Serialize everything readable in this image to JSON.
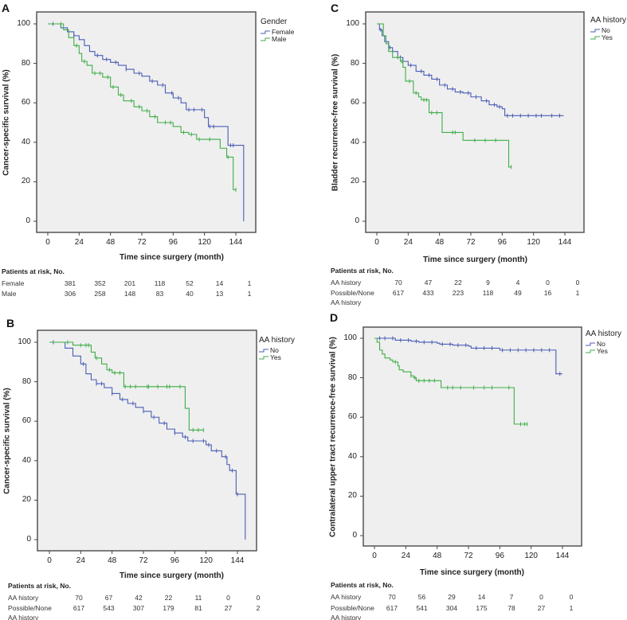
{
  "colors": {
    "blue": "#4a5db5",
    "green": "#3fae49",
    "plot_bg": "#efefef",
    "frame": "#555555"
  },
  "chart_data": [
    {
      "panel": "A",
      "type": "line",
      "ylabel": "Cancer-specific survival (%)",
      "xlabel": "Time since surgery (month)",
      "xticks": [
        0,
        24,
        48,
        72,
        96,
        120,
        144
      ],
      "yticks": [
        0,
        20,
        40,
        60,
        80,
        100
      ],
      "xlim": [
        -8,
        160
      ],
      "ylim": [
        -5,
        105
      ],
      "legend_title": "Gender",
      "legend_position": "right",
      "series": [
        {
          "name": "Female",
          "color": "blue",
          "points": [
            [
              0,
              100
            ],
            [
              5,
              100
            ],
            [
              10,
              98
            ],
            [
              15,
              96
            ],
            [
              20,
              94
            ],
            [
              24,
              92
            ],
            [
              28,
              89
            ],
            [
              32,
              86
            ],
            [
              36,
              84
            ],
            [
              42,
              82
            ],
            [
              48,
              80.5
            ],
            [
              54,
              79
            ],
            [
              60,
              77
            ],
            [
              66,
              75
            ],
            [
              72,
              73.5
            ],
            [
              78,
              71
            ],
            [
              84,
              69
            ],
            [
              90,
              65
            ],
            [
              96,
              62.5
            ],
            [
              102,
              60
            ],
            [
              106,
              56.5
            ],
            [
              120,
              52.5
            ],
            [
              123,
              48
            ],
            [
              137,
              48
            ],
            [
              138,
              38.5
            ],
            [
              150,
              38.5
            ],
            [
              150,
              0
            ]
          ],
          "censored": [
            4,
            20,
            38,
            45,
            52,
            60,
            70,
            80,
            88,
            95,
            100,
            108,
            112,
            118,
            124,
            127,
            140,
            142
          ]
        },
        {
          "name": "Male",
          "color": "green",
          "points": [
            [
              0,
              100
            ],
            [
              8,
              100
            ],
            [
              12,
              97
            ],
            [
              16,
              93
            ],
            [
              20,
              89
            ],
            [
              24,
              85
            ],
            [
              26,
              81
            ],
            [
              30,
              79
            ],
            [
              34,
              75
            ],
            [
              42,
              73
            ],
            [
              48,
              68
            ],
            [
              54,
              64
            ],
            [
              58,
              61
            ],
            [
              66,
              58
            ],
            [
              72,
              56
            ],
            [
              78,
              53
            ],
            [
              84,
              50
            ],
            [
              96,
              48
            ],
            [
              102,
              45
            ],
            [
              108,
              44
            ],
            [
              114,
              41.5
            ],
            [
              130,
              41.5
            ],
            [
              132,
              37
            ],
            [
              137,
              32.5
            ],
            [
              142,
              32.5
            ],
            [
              142,
              16
            ],
            [
              144,
              16
            ]
          ],
          "censored": [
            10,
            22,
            28,
            36,
            40,
            46,
            50,
            56,
            64,
            70,
            76,
            82,
            90,
            94,
            104,
            110,
            116,
            124,
            138,
            144
          ]
        }
      ],
      "risk_table": {
        "title": "Patients at risk, No.",
        "rows": [
          {
            "label": "Female",
            "values": [
              381,
              352,
              201,
              118,
              52,
              14,
              1
            ]
          },
          {
            "label": "Male",
            "values": [
              306,
              258,
              148,
              83,
              40,
              13,
              1
            ]
          }
        ]
      }
    },
    {
      "panel": "B",
      "type": "line",
      "ylabel": "Cancer-specific survival (%)",
      "xlabel": "Time since surgery (month)",
      "xticks": [
        0,
        24,
        48,
        72,
        96,
        120,
        144
      ],
      "yticks": [
        0,
        20,
        40,
        60,
        80,
        100
      ],
      "xlim": [
        -8,
        160
      ],
      "ylim": [
        -5,
        105
      ],
      "legend_title": "AA history",
      "legend_position": "right",
      "series": [
        {
          "name": "No",
          "color": "blue",
          "points": [
            [
              0,
              100
            ],
            [
              6,
              100
            ],
            [
              12,
              97
            ],
            [
              18,
              93
            ],
            [
              24,
              89
            ],
            [
              28,
              84
            ],
            [
              32,
              81
            ],
            [
              36,
              79
            ],
            [
              42,
              77
            ],
            [
              48,
              74
            ],
            [
              54,
              71
            ],
            [
              60,
              69
            ],
            [
              66,
              67
            ],
            [
              72,
              65
            ],
            [
              78,
              62
            ],
            [
              84,
              59
            ],
            [
              90,
              56
            ],
            [
              96,
              54
            ],
            [
              102,
              52
            ],
            [
              106,
              50
            ],
            [
              114,
              50
            ],
            [
              120,
              48
            ],
            [
              124,
              45
            ],
            [
              130,
              45
            ],
            [
              132,
              42
            ],
            [
              136,
              38
            ],
            [
              138,
              35
            ],
            [
              142,
              35
            ],
            [
              143,
              23
            ],
            [
              150,
              23
            ],
            [
              150,
              0
            ]
          ],
          "censored": [
            3,
            26,
            36,
            40,
            48,
            56,
            64,
            72,
            80,
            88,
            96,
            104,
            110,
            118,
            122,
            128,
            135,
            140,
            144
          ]
        },
        {
          "name": "Yes",
          "color": "green",
          "points": [
            [
              0,
              100
            ],
            [
              14,
              100
            ],
            [
              18,
              98.5
            ],
            [
              28,
              98.5
            ],
            [
              32,
              95
            ],
            [
              35,
              92
            ],
            [
              40,
              89
            ],
            [
              44,
              86
            ],
            [
              48,
              84.5
            ],
            [
              56,
              84.5
            ],
            [
              57,
              77.5
            ],
            [
              103,
              77.5
            ],
            [
              104,
              66.5
            ],
            [
              106,
              66.5
            ],
            [
              107,
              55.5
            ],
            [
              118,
              55.5
            ]
          ],
          "censored": [
            14,
            24,
            28,
            30,
            36,
            46,
            50,
            54,
            58,
            62,
            66,
            75,
            76,
            83,
            90,
            92,
            100,
            110,
            114,
            118
          ]
        }
      ],
      "risk_table": {
        "title": "Patients at risk, No.",
        "rows": [
          {
            "label": "AA history",
            "values": [
              70,
              67,
              42,
              22,
              11,
              0,
              0
            ]
          },
          {
            "label": "Possible/None",
            "label2": "AA history",
            "values": [
              617,
              543,
              307,
              179,
              81,
              27,
              2
            ]
          }
        ]
      }
    },
    {
      "panel": "C",
      "type": "line",
      "ylabel": "Bladder recurrence-free survival (%)",
      "xlabel": "Time since surgery (month)",
      "xticks": [
        0,
        24,
        48,
        72,
        96,
        120,
        144
      ],
      "yticks": [
        0,
        20,
        40,
        60,
        80,
        100
      ],
      "xlim": [
        -8,
        158
      ],
      "ylim": [
        -5,
        105
      ],
      "legend_title": "AA history",
      "legend_position": "right",
      "series": [
        {
          "name": "No",
          "color": "blue",
          "points": [
            [
              0,
              100
            ],
            [
              2,
              97
            ],
            [
              4,
              94
            ],
            [
              6,
              91
            ],
            [
              9,
              88
            ],
            [
              12,
              86
            ],
            [
              16,
              83
            ],
            [
              20,
              81
            ],
            [
              24,
              79
            ],
            [
              30,
              76
            ],
            [
              36,
              74
            ],
            [
              42,
              72
            ],
            [
              48,
              69
            ],
            [
              54,
              67
            ],
            [
              60,
              65.5
            ],
            [
              66,
              65
            ],
            [
              72,
              63
            ],
            [
              80,
              61
            ],
            [
              86,
              59
            ],
            [
              92,
              58
            ],
            [
              96,
              57
            ],
            [
              98,
              53.5
            ],
            [
              143,
              53.5
            ]
          ],
          "censored": [
            3,
            10,
            18,
            26,
            34,
            40,
            46,
            52,
            58,
            64,
            70,
            76,
            84,
            90,
            94,
            100,
            104,
            110,
            116,
            122,
            126,
            134,
            140
          ]
        },
        {
          "name": "Yes",
          "color": "green",
          "points": [
            [
              0,
              100
            ],
            [
              3,
              100
            ],
            [
              5,
              94
            ],
            [
              7,
              90
            ],
            [
              9,
              86
            ],
            [
              12,
              83
            ],
            [
              18,
              81
            ],
            [
              20,
              78
            ],
            [
              22,
              71
            ],
            [
              26,
              71
            ],
            [
              28,
              65
            ],
            [
              32,
              63
            ],
            [
              34,
              61.5
            ],
            [
              39,
              61.5
            ],
            [
              40,
              55
            ],
            [
              48,
              55
            ],
            [
              50,
              45
            ],
            [
              66,
              45
            ],
            [
              66,
              41
            ],
            [
              100,
              41
            ],
            [
              101,
              27.5
            ],
            [
              103,
              27.5
            ]
          ],
          "censored": [
            16,
            19,
            25,
            30,
            36,
            38,
            42,
            46,
            58,
            60,
            75,
            83,
            91,
            103
          ]
        }
      ],
      "risk_table": {
        "title": "Patients at risk, No.",
        "rows": [
          {
            "label": "AA history",
            "values": [
              70,
              47,
              22,
              9,
              4,
              0,
              0
            ]
          },
          {
            "label": "Possible/None",
            "label2": "AA history",
            "values": [
              617,
              433,
              223,
              118,
              49,
              16,
              1
            ]
          }
        ]
      }
    },
    {
      "panel": "D",
      "type": "line",
      "ylabel": "Contralateral upper tract recurrence-free survival (%)",
      "xlabel": "Time since surgery (month)",
      "xticks": [
        0,
        24,
        48,
        72,
        96,
        120,
        144
      ],
      "yticks": [
        0,
        20,
        40,
        60,
        80,
        100
      ],
      "xlim": [
        -8,
        158
      ],
      "ylim": [
        -5,
        105
      ],
      "legend_title": "AA history",
      "legend_position": "right",
      "series": [
        {
          "name": "No",
          "color": "blue",
          "points": [
            [
              0,
              100
            ],
            [
              12,
              100
            ],
            [
              16,
              99
            ],
            [
              28,
              98.5
            ],
            [
              34,
              98
            ],
            [
              48,
              97.5
            ],
            [
              50,
              97
            ],
            [
              60,
              96.5
            ],
            [
              72,
              96
            ],
            [
              74,
              95
            ],
            [
              94,
              95
            ],
            [
              96,
              94
            ],
            [
              139,
              94
            ],
            [
              139,
              82
            ],
            [
              144,
              82
            ]
          ],
          "censored": [
            4,
            8,
            14,
            20,
            26,
            32,
            38,
            44,
            52,
            58,
            64,
            70,
            78,
            84,
            90,
            98,
            104,
            110,
            116,
            122,
            128,
            134,
            142
          ]
        },
        {
          "name": "Yes",
          "color": "green",
          "points": [
            [
              0,
              100
            ],
            [
              2,
              98
            ],
            [
              4,
              94
            ],
            [
              6,
              92
            ],
            [
              8,
              90
            ],
            [
              12,
              89
            ],
            [
              14,
              88
            ],
            [
              18,
              86
            ],
            [
              19,
              84
            ],
            [
              22,
              83
            ],
            [
              28,
              81
            ],
            [
              30,
              80
            ],
            [
              32,
              78.5
            ],
            [
              50,
              78.5
            ],
            [
              51,
              75
            ],
            [
              107,
              75
            ],
            [
              107,
              56.5
            ],
            [
              117,
              56.5
            ]
          ],
          "censored": [
            16,
            28,
            31,
            34,
            38,
            42,
            46,
            56,
            60,
            66,
            76,
            84,
            90,
            103,
            112,
            115,
            117
          ]
        }
      ],
      "risk_table": {
        "title": "Patients at risk, No.",
        "rows": [
          {
            "label": "AA history",
            "values": [
              70,
              56,
              29,
              14,
              7,
              0,
              0
            ]
          },
          {
            "label": "Possible/None",
            "label2": "AA history",
            "values": [
              617,
              541,
              304,
              175,
              78,
              27,
              1
            ]
          }
        ]
      }
    }
  ]
}
